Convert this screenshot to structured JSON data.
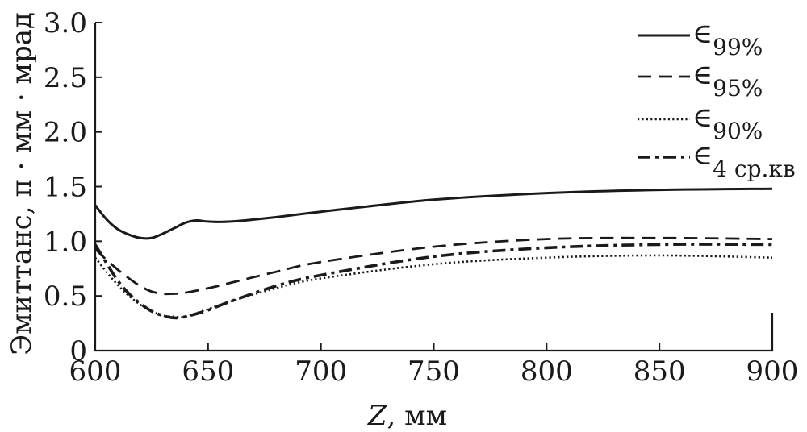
{
  "chart_data": {
    "type": "line",
    "xlabel_var": "Z",
    "xlabel_unit": ", мм",
    "ylabel": "Эмиттанс, π · мм · мрад",
    "xlim": [
      600,
      900
    ],
    "ylim": [
      0,
      3.0
    ],
    "xticks": [
      "600",
      "650",
      "700",
      "750",
      "800",
      "850",
      "900"
    ],
    "yticks": [
      "0",
      "0.5",
      "1.0",
      "1.5",
      "2.0",
      "2.5",
      "3.0"
    ],
    "legend_position": "top-right",
    "grid": false,
    "series": [
      {
        "name": "∈99%",
        "symbol": "∈",
        "subscript": "99%",
        "style": "solid",
        "x": [
          600,
          605,
          610,
          615,
          620,
          625,
          630,
          635,
          640,
          645,
          650,
          660,
          680,
          700,
          750,
          800,
          850,
          900
        ],
        "y": [
          1.33,
          1.2,
          1.11,
          1.06,
          1.03,
          1.03,
          1.07,
          1.12,
          1.17,
          1.19,
          1.18,
          1.18,
          1.22,
          1.27,
          1.38,
          1.44,
          1.47,
          1.48
        ]
      },
      {
        "name": "∈95%",
        "symbol": "∈",
        "subscript": "95%",
        "style": "dashed",
        "x": [
          600,
          605,
          610,
          615,
          620,
          625,
          630,
          635,
          640,
          650,
          660,
          680,
          700,
          750,
          800,
          850,
          900
        ],
        "y": [
          0.93,
          0.83,
          0.74,
          0.66,
          0.59,
          0.54,
          0.52,
          0.52,
          0.53,
          0.57,
          0.62,
          0.72,
          0.81,
          0.95,
          1.02,
          1.03,
          1.02
        ]
      },
      {
        "name": "∈90%",
        "symbol": "∈",
        "subscript": "90%",
        "style": "dotted",
        "x": [
          600,
          605,
          610,
          615,
          620,
          625,
          630,
          635,
          640,
          650,
          660,
          680,
          700,
          750,
          800,
          850,
          900
        ],
        "y": [
          0.85,
          0.72,
          0.6,
          0.5,
          0.42,
          0.36,
          0.32,
          0.31,
          0.31,
          0.38,
          0.45,
          0.57,
          0.66,
          0.79,
          0.85,
          0.87,
          0.85
        ]
      },
      {
        "name": "∈4 ср.кв",
        "symbol": "∈",
        "subscript": "4 ср.кв",
        "style": "dashdot",
        "x": [
          600,
          605,
          610,
          615,
          620,
          625,
          630,
          635,
          640,
          650,
          660,
          680,
          700,
          750,
          800,
          850,
          900
        ],
        "y": [
          0.97,
          0.8,
          0.64,
          0.52,
          0.43,
          0.36,
          0.32,
          0.3,
          0.31,
          0.37,
          0.45,
          0.59,
          0.69,
          0.86,
          0.94,
          0.97,
          0.97
        ]
      }
    ]
  }
}
